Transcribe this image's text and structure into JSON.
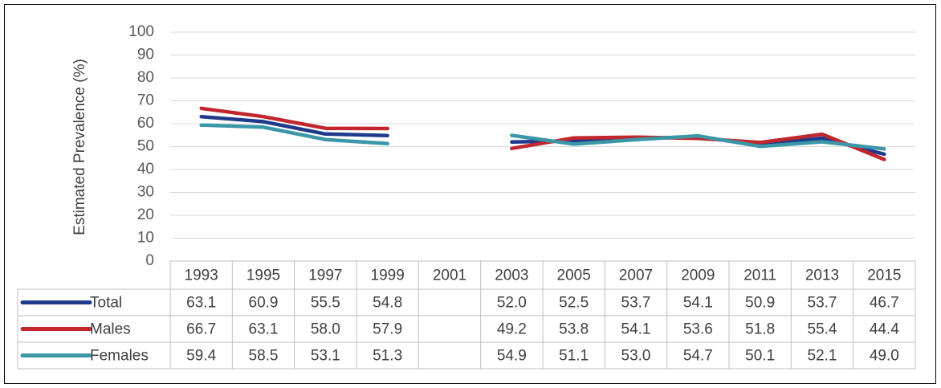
{
  "chart_data": {
    "type": "line",
    "y_label": "Estimated Prevalence (%)",
    "categories": [
      "1993",
      "1995",
      "1997",
      "1999",
      "2001",
      "2003",
      "2005",
      "2007",
      "2009",
      "2011",
      "2013",
      "2015"
    ],
    "series": [
      {
        "name": "Total",
        "color": "#1f3a8a",
        "values": [
          63.1,
          60.9,
          55.5,
          54.8,
          null,
          52,
          52.5,
          53.7,
          54.1,
          50.9,
          53.7,
          46.7
        ],
        "value_labels": [
          "63.1",
          "60.9",
          "55.5",
          "54.8",
          null,
          "52.0",
          "52.5",
          "53.7",
          "54.1",
          "50.9",
          "53.7",
          "46.7"
        ]
      },
      {
        "name": "Males",
        "color": "#c1272d",
        "values": [
          66.7,
          63.1,
          58,
          57.9,
          null,
          49.2,
          53.8,
          54.1,
          53.6,
          51.8,
          55.4,
          44.4
        ],
        "value_labels": [
          "66.7",
          "63.1",
          "58.0",
          "57.9",
          null,
          "49.2",
          "53.8",
          "54.1",
          "53.6",
          "51.8",
          "55.4",
          "44.4"
        ]
      },
      {
        "name": "Females",
        "color": "#3b97a8",
        "values": [
          59.4,
          58.5,
          53.1,
          51.3,
          null,
          54.9,
          51.1,
          53,
          54.7,
          50.1,
          52.1,
          49
        ],
        "value_labels": [
          "59.4",
          "58.5",
          "53.1",
          "51.3",
          null,
          "54.9",
          "51.1",
          "53.0",
          "54.7",
          "50.1",
          "52.1",
          "49.0"
        ]
      }
    ],
    "ylim": [
      0,
      100
    ],
    "yticks": [
      0,
      10,
      20,
      30,
      40,
      50,
      60,
      70,
      80,
      90,
      100
    ],
    "grid": true
  }
}
